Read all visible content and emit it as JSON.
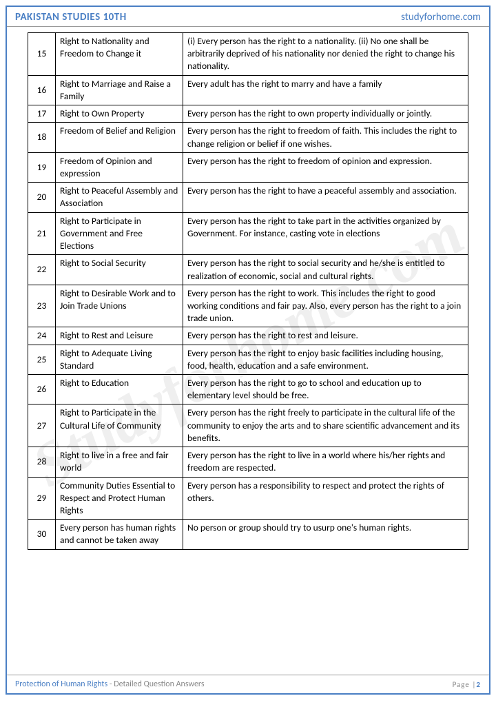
{
  "header": {
    "left": "PAKISTAN STUDIES 10TH",
    "right": "studyforhome.com"
  },
  "watermark": "Studyforhome.com",
  "footer": {
    "title": "Protection of Human Rights",
    "sub": " - Detailed Question Answers",
    "pageLabel": "Page |",
    "pageNum": "2"
  },
  "styling": {
    "borderColor": "#4a7fc4",
    "headerColor": "#4a7fc4",
    "tableBorder": "#000000",
    "fontSize": 13.5,
    "watermarkColor": "rgba(150,150,150,0.15)",
    "watermarkRotation": -30
  },
  "rows": [
    {
      "n": "15",
      "t": "Right to Nationality and Freedom to Change it",
      "d": "(i) Every person has the right to a nationality. (ii) No one shall be arbitrarily deprived of his nationality nor denied the right to change his nationality."
    },
    {
      "n": "16",
      "t": "Right to Marriage and Raise a Family",
      "d": "Every adult has the right to marry and have a family"
    },
    {
      "n": "17",
      "t": "Right to Own Property",
      "d": "Every person has the right to own property individually or jointly."
    },
    {
      "n": "18",
      "t": "Freedom of Belief and Religion",
      "d": "Every person has the right to freedom of faith. This includes the right to change religion or belief if one wishes."
    },
    {
      "n": "19",
      "t": "Freedom of Opinion and expression",
      "d": "Every person has the right to freedom of opinion and expression."
    },
    {
      "n": "20",
      "t": "Right to Peaceful Assembly and Association",
      "d": "Every person has the right to have a peaceful assembly and association."
    },
    {
      "n": "21",
      "t": "Right to Participate in Government and Free Elections",
      "d": "Every person has the right to take part in the activities organized by Government. For instance, casting vote in elections"
    },
    {
      "n": "22",
      "t": "Right to Social Security",
      "d": "Every person has the right to social security and he/she is entitled to realization of economic, social and cultural rights."
    },
    {
      "n": "23",
      "t": "Right to Desirable Work and to Join Trade Unions",
      "d": "Every person has the right to work. This includes the right to good working conditions and fair pay. Also, every person has the right to a join trade union."
    },
    {
      "n": "24",
      "t": "Right to Rest and Leisure",
      "d": "Every person has the right to rest and leisure."
    },
    {
      "n": "25",
      "t": "Right to Adequate Living Standard",
      "d": "Every person has the right to enjoy basic facilities including housing, food, health, education and a safe environment."
    },
    {
      "n": "26",
      "t": "Right to Education",
      "d": "Every person has the right to go to school and education up to elementary level should be free."
    },
    {
      "n": "27",
      "t": "Right to Participate in the Cultural Life of Community",
      "d": "Every person has the right freely to participate in the cultural life of the community to enjoy the arts and to share scientific advancement and its benefits."
    },
    {
      "n": "28",
      "t": "Right to live in a free and fair world",
      "d": "Every person has the right to live in a world where his/her rights and freedom are respected."
    },
    {
      "n": "29",
      "t": "Community Duties Essential to Respect and Protect Human Rights",
      "d": "Every person has a responsibility to respect and protect the rights of others."
    },
    {
      "n": "30",
      "t": "Every person has human rights and cannot be taken away",
      "d": "No person or group should try to usurp one's human rights."
    }
  ]
}
